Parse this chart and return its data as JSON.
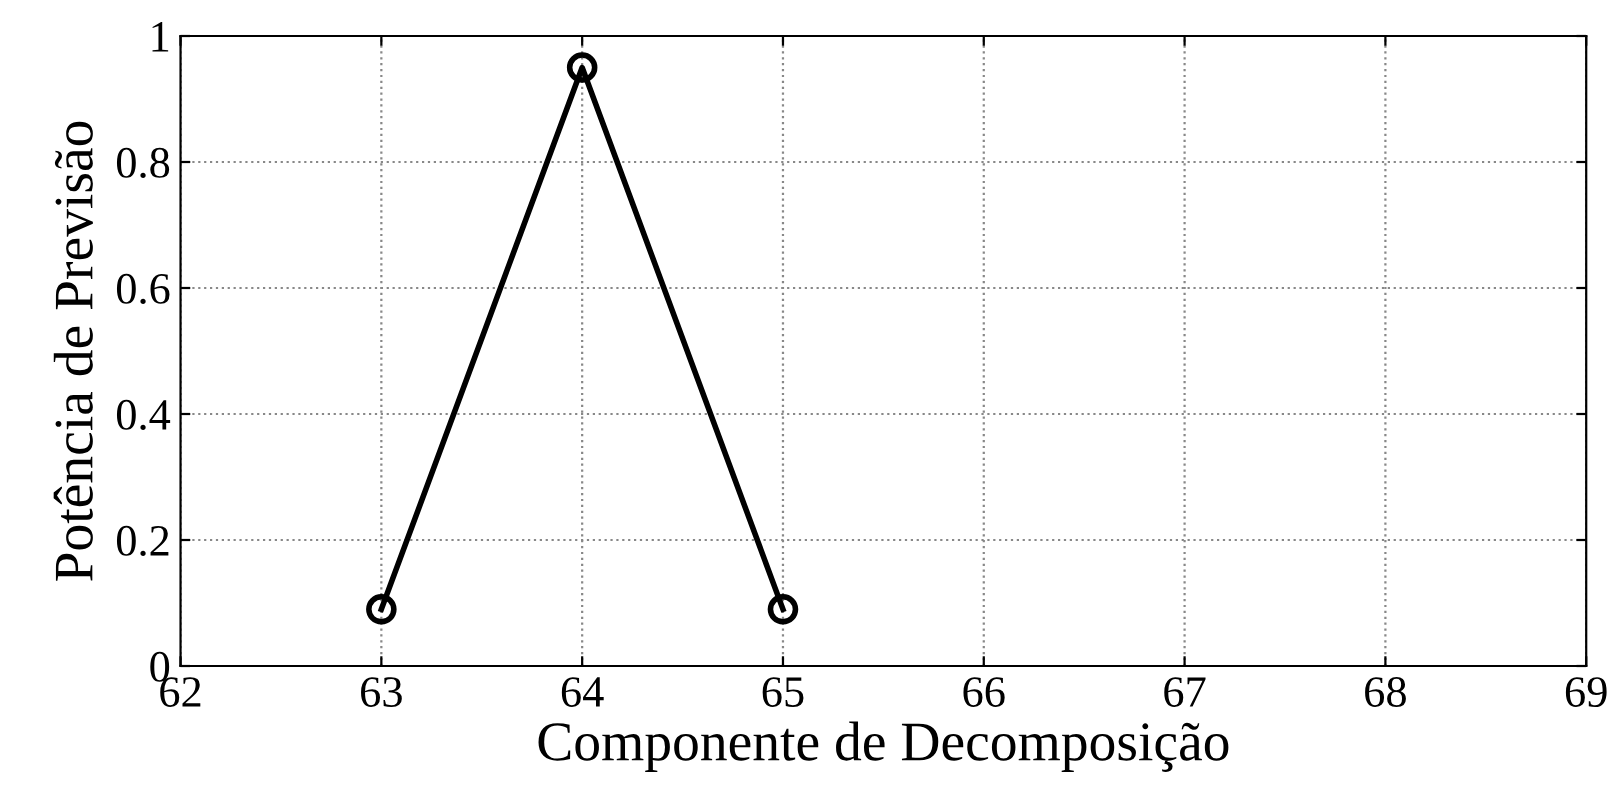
{
  "chart_data": {
    "type": "line",
    "xlabel": "Componente de Decomposição",
    "ylabel": "Potência de Previsão",
    "x": [
      63,
      64,
      65
    ],
    "series": [
      {
        "color": "#000000",
        "values": [
          0.09,
          0.95,
          0.09
        ]
      }
    ],
    "xlim": [
      62,
      69
    ],
    "xticks": [
      62,
      63,
      64,
      65,
      66,
      67,
      68,
      69
    ],
    "ylim": [
      0,
      1
    ],
    "yticks": [
      0,
      0.2,
      0.4,
      0.6,
      0.8,
      1
    ],
    "grid": true,
    "marker": "circle",
    "line_style": "solid",
    "legend": false
  }
}
